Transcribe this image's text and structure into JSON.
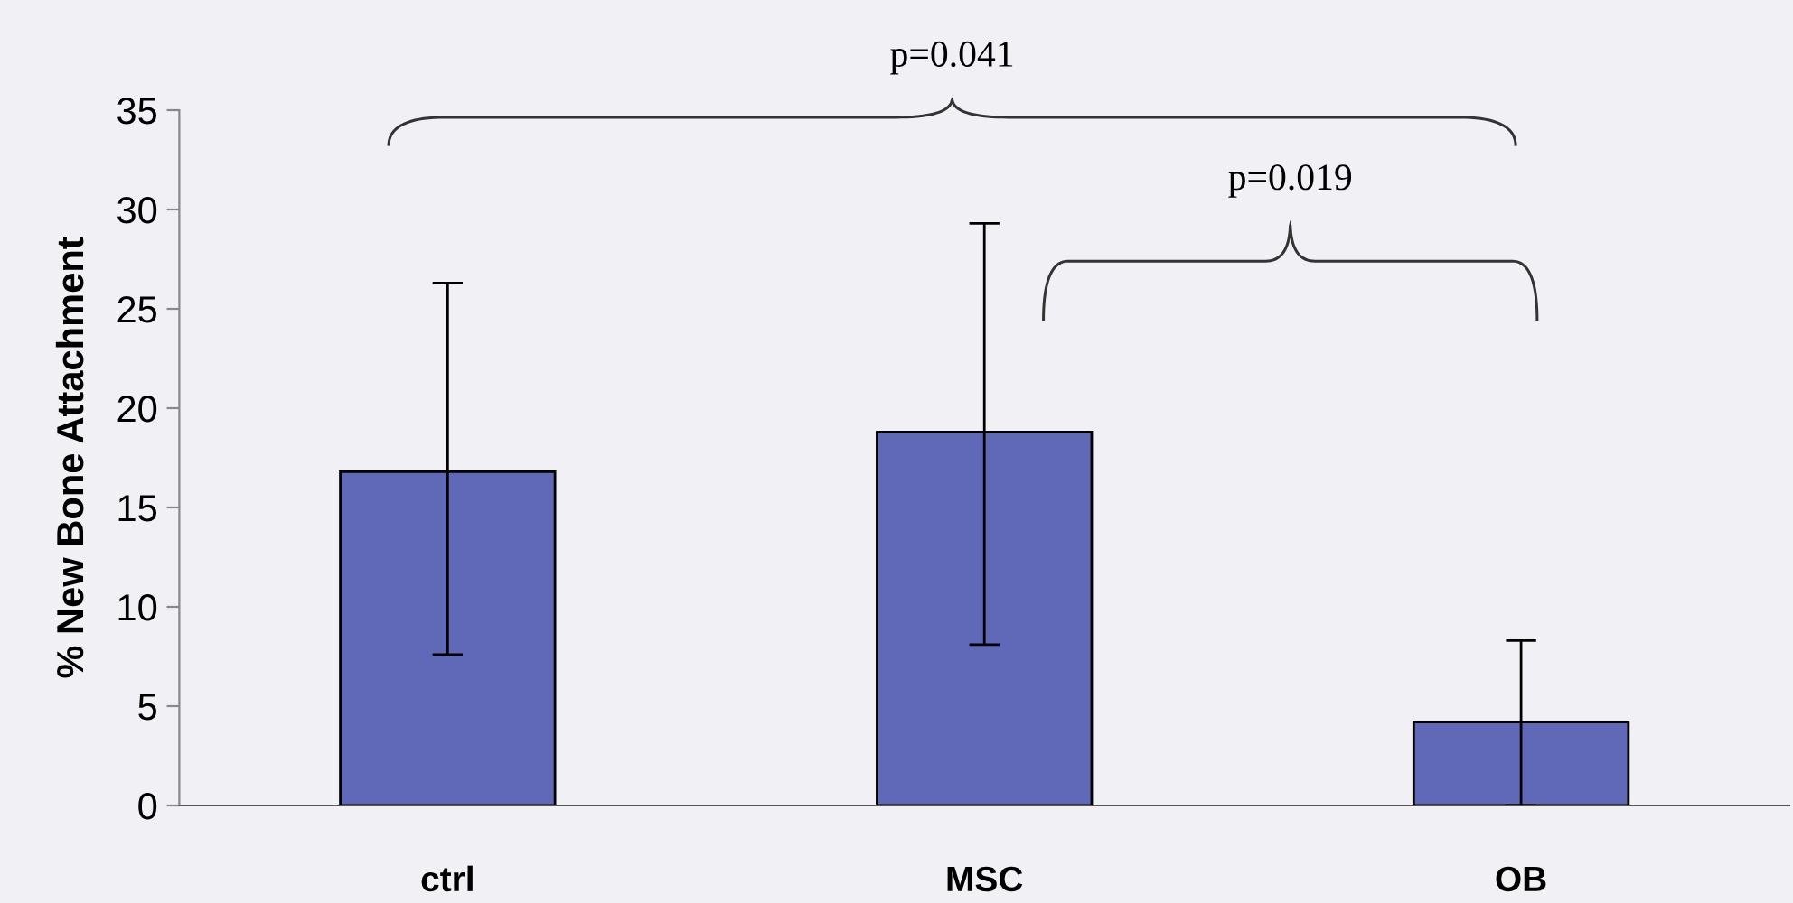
{
  "chart_data": {
    "type": "bar",
    "ylabel": "% New Bone Attachment",
    "categories": [
      "ctrl",
      "MSC",
      "OB"
    ],
    "values": [
      16.8,
      18.8,
      4.2
    ],
    "errors": [
      [
        7.6,
        26.3
      ],
      [
        8.1,
        29.3
      ],
      [
        0,
        8.3
      ]
    ],
    "color": "#6068b8",
    "ylim": [
      0,
      35
    ],
    "yticks": [
      0,
      5,
      10,
      15,
      20,
      25,
      30,
      35
    ],
    "annotations": [
      "p=0.041",
      "p=0.019"
    ],
    "grid": false,
    "legend": false
  }
}
